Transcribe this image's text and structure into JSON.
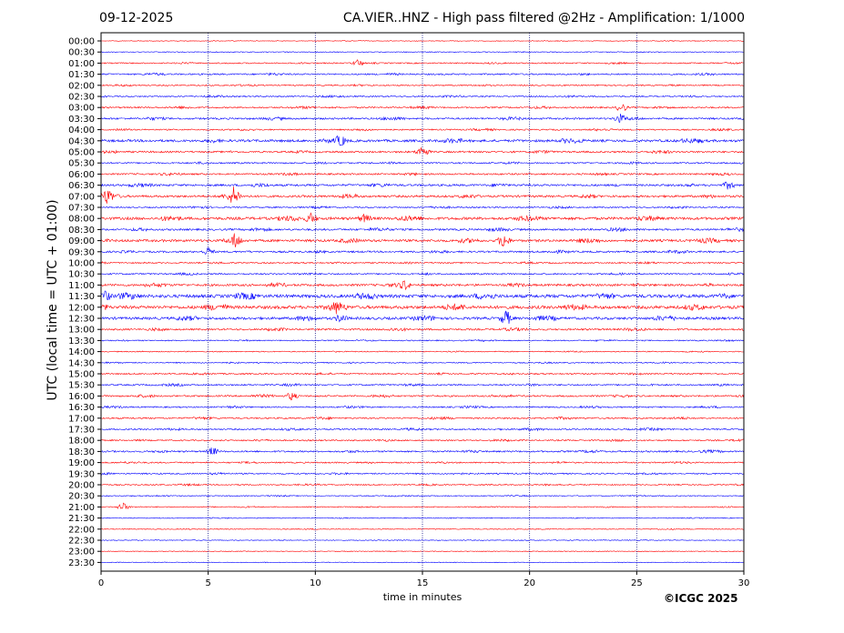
{
  "header": {
    "date": "09-12-2025",
    "title": "CA.VIER..HNZ - High pass filtered @2Hz - Amplification: 1/1000"
  },
  "footer": {
    "copyright": "©ICGC 2025"
  },
  "chart_data": {
    "type": "line",
    "title": "CA.VIER..HNZ - High pass filtered @2Hz - Amplification: 1/1000",
    "xlabel": "time in minutes",
    "ylabel": "UTC (local time = UTC + 01:00)",
    "xlim": [
      0,
      30
    ],
    "x_ticks": [
      0,
      5,
      10,
      15,
      20,
      25,
      30
    ],
    "grid": "vertical dotted lines at 5-minute intervals",
    "y_order": "top-to-bottom",
    "rows": [
      "00:00",
      "00:30",
      "01:00",
      "01:30",
      "02:00",
      "02:30",
      "03:00",
      "03:30",
      "04:00",
      "04:30",
      "05:00",
      "05:30",
      "06:00",
      "06:30",
      "07:00",
      "07:30",
      "08:00",
      "08:30",
      "09:00",
      "09:30",
      "10:00",
      "10:30",
      "11:00",
      "11:30",
      "12:00",
      "12:30",
      "13:00",
      "13:30",
      "14:00",
      "14:30",
      "15:00",
      "15:30",
      "16:00",
      "16:30",
      "17:00",
      "17:30",
      "18:00",
      "18:30",
      "19:00",
      "19:30",
      "20:00",
      "20:30",
      "21:00",
      "21:30",
      "22:00",
      "22:30",
      "23:00",
      "23:30"
    ],
    "colors": {
      "even_rows": "#ff0000",
      "odd_rows": "#0000ff",
      "grid": "#000080"
    },
    "activity": [
      0.05,
      0.08,
      0.25,
      0.35,
      0.25,
      0.3,
      0.35,
      0.45,
      0.3,
      0.7,
      0.45,
      0.35,
      0.4,
      0.55,
      0.6,
      0.3,
      0.8,
      0.5,
      0.7,
      0.45,
      0.3,
      0.35,
      0.6,
      1.0,
      0.95,
      0.75,
      0.45,
      0.2,
      0.15,
      0.2,
      0.3,
      0.35,
      0.4,
      0.3,
      0.35,
      0.35,
      0.3,
      0.4,
      0.3,
      0.3,
      0.25,
      0.15,
      0.15,
      0.1,
      0.1,
      0.08,
      0.05,
      0.05
    ],
    "events": [
      {
        "row": "01:00",
        "minute": 12.0,
        "amplitude": 0.4
      },
      {
        "row": "03:00",
        "minute": 24.3,
        "amplitude": 0.5
      },
      {
        "row": "03:30",
        "minute": 24.2,
        "amplitude": 0.5
      },
      {
        "row": "04:30",
        "minute": 11.2,
        "amplitude": 0.6
      },
      {
        "row": "05:00",
        "minute": 15.0,
        "amplitude": 0.6
      },
      {
        "row": "06:30",
        "minute": 29.3,
        "amplitude": 0.5
      },
      {
        "row": "07:00",
        "minute": 0.3,
        "amplitude": 0.8
      },
      {
        "row": "07:00",
        "minute": 6.2,
        "amplitude": 1.0
      },
      {
        "row": "08:00",
        "minute": 9.8,
        "amplitude": 0.6
      },
      {
        "row": "08:00",
        "minute": 12.3,
        "amplitude": 0.5
      },
      {
        "row": "09:00",
        "minute": 6.3,
        "amplitude": 0.9
      },
      {
        "row": "09:00",
        "minute": 18.8,
        "amplitude": 0.9
      },
      {
        "row": "09:30",
        "minute": 5.0,
        "amplitude": 0.5
      },
      {
        "row": "11:00",
        "minute": 14.2,
        "amplitude": 0.5
      },
      {
        "row": "11:30",
        "minute": 0.2,
        "amplitude": 0.6
      },
      {
        "row": "12:00",
        "minute": 11.0,
        "amplitude": 0.5
      },
      {
        "row": "12:30",
        "minute": 11.2,
        "amplitude": 0.5
      },
      {
        "row": "12:30",
        "minute": 18.9,
        "amplitude": 0.9
      },
      {
        "row": "16:00",
        "minute": 8.9,
        "amplitude": 0.5
      },
      {
        "row": "18:30",
        "minute": 5.2,
        "amplitude": 0.5
      },
      {
        "row": "21:00",
        "minute": 1.0,
        "amplitude": 0.5
      }
    ]
  }
}
